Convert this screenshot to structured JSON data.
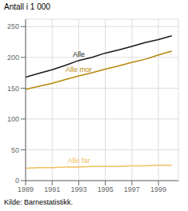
{
  "chart_data": {
    "type": "line",
    "y_label": "Antall i 1 000",
    "annotations": [
      "Kilde: Barnestatistikk."
    ],
    "x": [
      1989,
      1990,
      1991,
      1992,
      1993,
      1994,
      1995,
      1996,
      1997,
      1998,
      1999,
      2000
    ],
    "series": [
      {
        "name": "Alle",
        "color": "#1a1a1a",
        "values": [
          168,
          174,
          180,
          187,
          195,
          200,
          207,
          212,
          218,
          224,
          229,
          235
        ]
      },
      {
        "name": "Alle mor",
        "color": "#b8860b",
        "values": [
          148,
          153,
          158,
          164,
          170,
          175,
          181,
          186,
          192,
          197,
          204,
          210
        ]
      },
      {
        "name": "Alle far",
        "color": "#f0c060",
        "values": [
          20,
          21,
          21,
          22,
          22,
          23,
          23,
          23,
          24,
          24,
          25,
          25
        ]
      }
    ],
    "xlim": [
      1989,
      2000.5
    ],
    "xticks": [
      1989,
      1991,
      1993,
      1995,
      1997,
      1999
    ],
    "ylim": [
      0,
      262
    ],
    "yticks": [
      0,
      50,
      100,
      150,
      200,
      250
    ],
    "grid": true
  }
}
